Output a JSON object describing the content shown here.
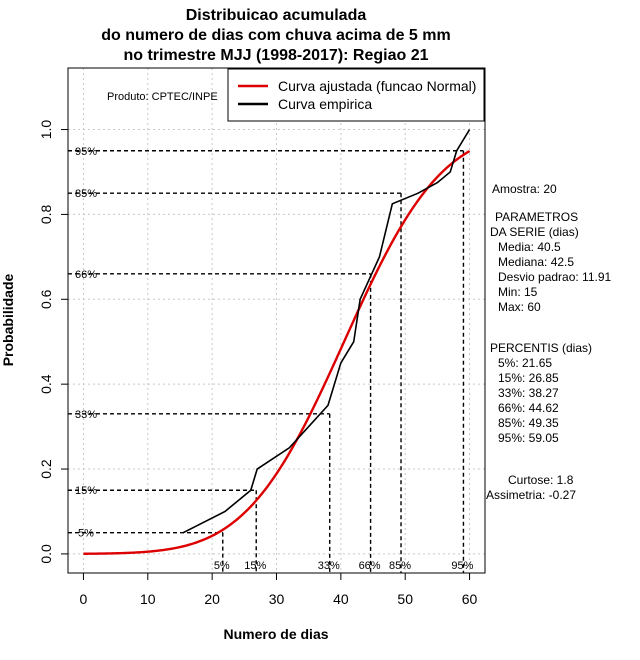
{
  "chart_data": {
    "type": "line",
    "title": [
      "Distribuicao acumulada",
      "do numero de dias com chuva acima de 5 mm",
      "no trimestre MJJ (1998-2017): Regiao 21"
    ],
    "xlabel": "Numero de dias",
    "ylabel": "Probabilidade",
    "xlim": [
      -2.4,
      62.4
    ],
    "ylim": [
      -0.045,
      1.145
    ],
    "xticks": [
      0,
      10,
      20,
      30,
      40,
      50,
      60
    ],
    "yticks": [
      0.0,
      0.2,
      0.4,
      0.6,
      0.8,
      1.0
    ],
    "ytick_labels": [
      "0.0",
      "0.2",
      "0.4",
      "0.6",
      "0.8",
      "1.0"
    ],
    "grid": true,
    "product_label": "Produto: CPTEC/INPE",
    "legend": {
      "position": "top-right",
      "entries": [
        {
          "label": "Curva ajustada (funcao Normal)",
          "color": "#dd0000"
        },
        {
          "label": "Curva empirica",
          "color": "#000000"
        }
      ]
    },
    "series": [
      {
        "name": "Curva ajustada (funcao Normal)",
        "kind": "normal_cdf",
        "mean": 40.5,
        "sd": 11.91,
        "x_range": [
          0,
          60
        ],
        "color": "#dd0000"
      },
      {
        "name": "Curva empirica",
        "color": "#000000",
        "x": [
          15.5,
          22,
          26,
          27,
          32,
          35,
          38,
          40,
          42,
          43,
          46,
          48,
          52,
          55,
          57,
          58,
          60
        ],
        "y": [
          0.05,
          0.1,
          0.15,
          0.2,
          0.25,
          0.3,
          0.35,
          0.45,
          0.5,
          0.6,
          0.7,
          0.825,
          0.85,
          0.875,
          0.9,
          0.95,
          1.0
        ]
      }
    ],
    "percentile_markers": [
      {
        "label": "5%",
        "p": 0.05,
        "x": 21.65
      },
      {
        "label": "15%",
        "p": 0.15,
        "x": 26.85
      },
      {
        "label": "33%",
        "p": 0.33,
        "x": 38.27
      },
      {
        "label": "66%",
        "p": 0.66,
        "x": 44.62
      },
      {
        "label": "85%",
        "p": 0.85,
        "x": 49.35
      },
      {
        "label": "95%",
        "p": 0.95,
        "x": 59.05
      }
    ],
    "side_panel": {
      "amostra": "Amostra: 20",
      "param_title_1": "PARAMETROS",
      "param_title_2": "DA SERIE (dias)",
      "params": [
        "Media: 40.5",
        "Mediana: 42.5",
        "Desvio padrao: 11.91",
        "Min: 15",
        "Max: 60"
      ],
      "perc_title": "PERCENTIS (dias)",
      "percentis": [
        "5%: 21.65",
        "15%: 26.85",
        "33%: 38.27",
        "66%: 44.62",
        "85%: 49.35",
        "95%: 59.05"
      ],
      "curtose": "Curtose: 1.8",
      "assimetria": "Assimetria: -0.27"
    }
  }
}
